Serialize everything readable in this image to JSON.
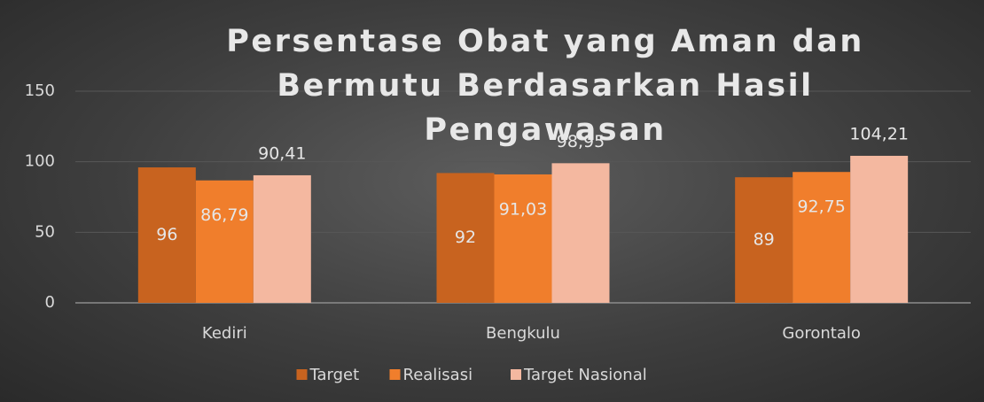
{
  "chart_data": {
    "type": "bar",
    "title": "Persentase Obat yang Aman dan Bermutu Berdasarkan Hasil Pengawasan",
    "categories": [
      "Kediri",
      "Bengkulu",
      "Gorontalo"
    ],
    "series": [
      {
        "name": "Target",
        "color": "#c8631f",
        "values": [
          96,
          92,
          89
        ],
        "value_labels": [
          "96",
          "92",
          "89"
        ]
      },
      {
        "name": "Realisasi",
        "color": "#f07e2c",
        "values": [
          86.79,
          91.03,
          92.75
        ],
        "value_labels": [
          "86,79",
          "91,03",
          "92,75"
        ]
      },
      {
        "name": "Target Nasional",
        "color": "#f4b8a0",
        "values": [
          90.41,
          98.95,
          104.21
        ],
        "value_labels": [
          "90,41",
          "98,95",
          "104,21"
        ]
      }
    ],
    "ylim": [
      0,
      150
    ],
    "yticks": [
      0,
      50,
      100,
      150
    ],
    "grid": true,
    "legend": "bottom"
  }
}
